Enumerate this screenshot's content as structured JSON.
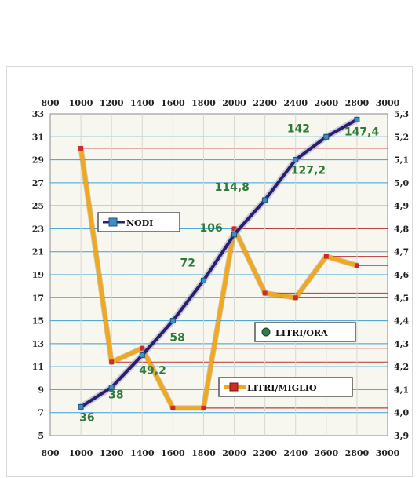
{
  "chart_data": {
    "type": "line",
    "x_top": [
      800,
      1000,
      1200,
      1400,
      1600,
      1800,
      2000,
      2200,
      2400,
      2600,
      2800,
      3000
    ],
    "x_bottom": [
      800,
      1000,
      1200,
      1400,
      1600,
      1800,
      2000,
      2200,
      2400,
      2600,
      2800,
      3000
    ],
    "xlim": [
      800,
      3000
    ],
    "y_left_ticks": [
      5,
      7,
      9,
      11,
      13,
      15,
      17,
      19,
      21,
      23,
      25,
      27,
      29,
      31,
      33
    ],
    "y_left_lim": [
      5,
      33
    ],
    "y_right_ticks": [
      "3,9",
      "4,0",
      "4,1",
      "4,2",
      "4,3",
      "4,4",
      "4,5",
      "4,6",
      "4,7",
      "4,8",
      "4,9",
      "5,0",
      "5,1",
      "5,2",
      "5,3"
    ],
    "y_right_lim": [
      3.9,
      5.3
    ],
    "series": [
      {
        "name": "NODI",
        "axis": "left",
        "color": "#2a1f6e",
        "x": [
          1000,
          1200,
          1400,
          1600,
          1800,
          2000,
          2200,
          2400,
          2600,
          2800
        ],
        "y": [
          7.5,
          9.2,
          12.0,
          15.0,
          18.5,
          22.5,
          25.5,
          29.0,
          31.0,
          32.5
        ],
        "labels": [
          {
            "x": 1000,
            "text": "36"
          },
          {
            "x": 1200,
            "text": "38"
          },
          {
            "x": 1400,
            "text": "49,2"
          },
          {
            "x": 1600,
            "text": "58"
          },
          {
            "x": 1800,
            "text": "72"
          },
          {
            "x": 2000,
            "text": "106"
          },
          {
            "x": 2200,
            "text": "114,8"
          },
          {
            "x": 2400,
            "text": "127,2"
          },
          {
            "x": 2600,
            "text": "142"
          },
          {
            "x": 2800,
            "text": "147,4"
          }
        ]
      },
      {
        "name": "LITRI/MIGLIO",
        "axis": "right",
        "color": "#f0a81e",
        "x": [
          1000,
          1200,
          1400,
          1600,
          1800,
          2000,
          2200,
          2400,
          2600,
          2800
        ],
        "y": [
          5.15,
          4.22,
          4.28,
          4.02,
          4.02,
          4.8,
          4.52,
          4.5,
          4.68,
          4.64
        ]
      }
    ],
    "legend": [
      {
        "label": "NODI",
        "marker": "square",
        "color": "#3a8fc8"
      },
      {
        "label": "LITRI/ORA",
        "marker": "circle",
        "color": "#2e7d4f"
      },
      {
        "label": "LITRI/MIGLIO",
        "marker": "square",
        "color": "#cc2b2b"
      }
    ],
    "grid": true,
    "colors": {
      "grid_blue": "#3a9fd8",
      "grid_red": "#c03030",
      "plot_bg": "#f7f7ef"
    }
  }
}
